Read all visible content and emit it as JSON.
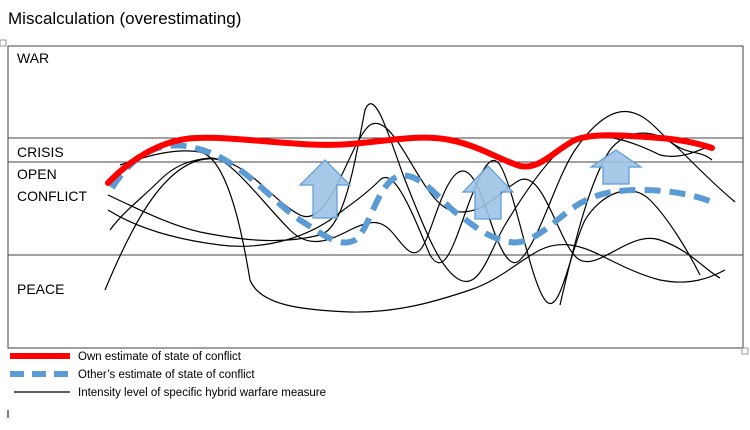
{
  "title": "Miscalculation (overestimating)",
  "bands": {
    "war": "WAR",
    "crisis": "CRISIS",
    "open_conflict_line1": "OPEN",
    "open_conflict_line2": "CONFLICT",
    "peace": "PEACE"
  },
  "legend": {
    "own": "Own estimate of state of conflict",
    "other": "Other’s estimate of state of conflict",
    "intensity": "Intensity level of specific hybrid warfare measure"
  },
  "colors": {
    "own_estimate": "#ff0000",
    "other_estimate": "#5b9bd5",
    "arrow_fill": "#9dc3e6",
    "arrow_stroke": "#5b9bd5",
    "intensity": "#000000",
    "frame": "#404040"
  },
  "icons": [
    "up-arrow-icon",
    "up-arrow-icon",
    "up-arrow-icon"
  ]
}
